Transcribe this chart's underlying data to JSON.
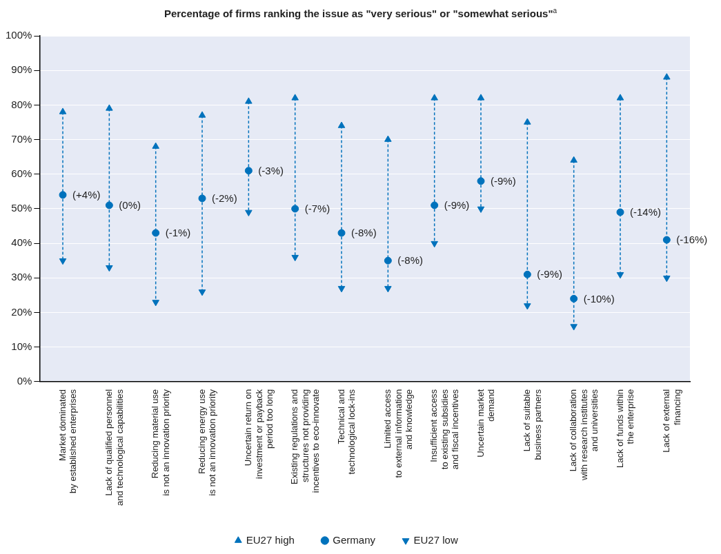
{
  "chart_data": {
    "type": "scatter",
    "title": "Percentage of  firms ranking the issue as \"very serious\" or \"somewhat serious\"$^{a}$",
    "categories": [
      "Market dominated\nby established enterprises",
      "Lack of qualified personnel\nand technological capabilities",
      "Reducing material use\nis not an innovation priority",
      "Reducing energy use\nis not an innovation priority",
      "Uncertain return on\ninvestment or payback\nperiod too long",
      "Existing regulations and\nstructures not providing\nincentives to eco-innovate",
      "Technical and\ntechnological lock-ins",
      "Limited access\nto external information\nand knowledge",
      "Insufficient access\nto existing subsidies\nand fiscal incentives",
      "Uncertain market\ndemand",
      "Lack of suitable\nbusiness partners",
      "Lack of collaboration\nwith research institutes\nand universities",
      "Lack of funds within\nthe enterprise",
      "Lack of external\nfinancing"
    ],
    "series": [
      {
        "name": "EU27 high",
        "color": "#0072bc",
        "marker": "triangle",
        "values": [
          78,
          79,
          68,
          77,
          81,
          82,
          74,
          70,
          82,
          82,
          75,
          64,
          82,
          88
        ]
      },
      {
        "name": "Germany",
        "color": "#0072bc",
        "marker": "circle",
        "values": [
          54,
          51,
          43,
          53,
          61,
          50,
          43,
          35,
          51,
          58,
          31,
          24,
          49,
          41
        ]
      },
      {
        "name": "EU27 low",
        "color": "#0072bc",
        "marker": "triangle-down",
        "values": [
          35,
          33,
          23,
          26,
          49,
          36,
          27,
          27,
          40,
          50,
          22,
          16,
          31,
          30
        ]
      }
    ],
    "ylim": [
      0,
      100
    ],
    "yticks": [
      {
        "value": 0,
        "label": "0%"
      },
      {
        "value": 10,
        "label": "10%"
      },
      {
        "value": 20,
        "label": "20%"
      },
      {
        "value": 30,
        "label": "30%"
      },
      {
        "value": 40,
        "label": "40%"
      },
      {
        "value": 50,
        "label": "50%"
      },
      {
        "value": 60,
        "label": "60%"
      },
      {
        "value": 70,
        "label": "70%"
      },
      {
        "value": 80,
        "label": "80%"
      },
      {
        "value": 90,
        "label": "90%"
      },
      {
        "value": 100,
        "label": "100%"
      }
    ],
    "annotations": [
      "(+4%)",
      "(0%)",
      "(-1%)",
      "(-2%)",
      "(-3%)",
      "(-7%)",
      "(-8%)",
      "(-8%)",
      "(-9%)",
      "(-9%)",
      "(-9%)",
      "(-10%)",
      "(-14%)",
      "(-16%)"
    ],
    "grid": true,
    "legend": "bottom",
    "line_style": "dashed"
  }
}
